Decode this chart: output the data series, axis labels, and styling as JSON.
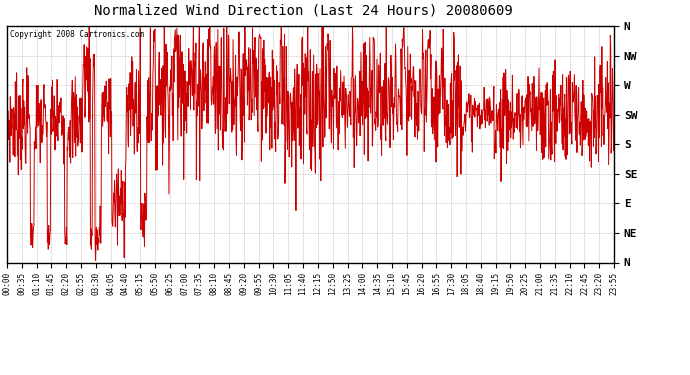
{
  "title": "Normalized Wind Direction (Last 24 Hours) 20080609",
  "copyright_text": "Copyright 2008 Cartronics.com",
  "line_color": "#cc0000",
  "background_color": "#ffffff",
  "grid_color": "#aaaaaa",
  "ytick_labels": [
    "N",
    "NW",
    "W",
    "SW",
    "S",
    "SE",
    "E",
    "NE",
    "N"
  ],
  "ytick_values": [
    1.0,
    0.875,
    0.75,
    0.625,
    0.5,
    0.375,
    0.25,
    0.125,
    0.0
  ],
  "xtick_labels": [
    "00:00",
    "00:35",
    "01:10",
    "01:45",
    "02:20",
    "02:55",
    "03:30",
    "04:05",
    "04:40",
    "05:15",
    "05:50",
    "06:25",
    "07:00",
    "07:35",
    "08:10",
    "08:45",
    "09:20",
    "09:55",
    "10:30",
    "11:05",
    "11:40",
    "12:15",
    "12:50",
    "13:25",
    "14:00",
    "14:35",
    "15:10",
    "15:45",
    "16:20",
    "16:55",
    "17:30",
    "18:05",
    "18:40",
    "19:15",
    "19:50",
    "20:25",
    "21:00",
    "21:35",
    "22:10",
    "22:45",
    "23:20",
    "23:55"
  ],
  "ylim": [
    0.0,
    1.0
  ],
  "linewidth": 0.7,
  "title_fontsize": 10,
  "figwidth": 6.9,
  "figheight": 3.75,
  "dpi": 100
}
